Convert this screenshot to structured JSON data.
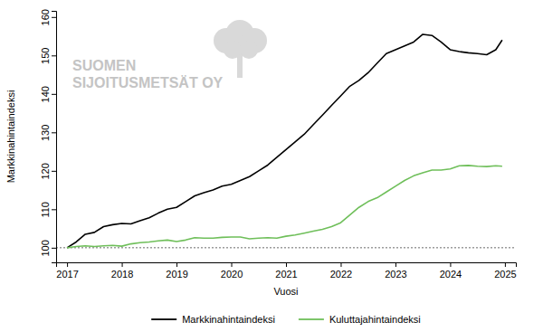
{
  "chart_data": {
    "type": "line",
    "x_label": "Vuosi",
    "y_label": "Markkinahintaindeksi",
    "annotations": [
      "SUOMEN",
      "SIJOITUSMETSÄT OY"
    ],
    "reference_line": 100,
    "xlim": [
      2016.8,
      2025.2
    ],
    "xticks": [
      2017,
      2018,
      2019,
      2020,
      2021,
      2022,
      2023,
      2024,
      2025
    ],
    "ylim": [
      96.2,
      161.6
    ],
    "yticks": [
      100,
      110,
      120,
      130,
      140,
      150,
      160
    ],
    "grid": false,
    "legend": "bottom",
    "x": [
      2017.0,
      2017.167,
      2017.333,
      2017.5,
      2017.667,
      2017.833,
      2018.0,
      2018.167,
      2018.333,
      2018.5,
      2018.667,
      2018.833,
      2019.0,
      2019.167,
      2019.333,
      2019.5,
      2019.667,
      2019.833,
      2020.0,
      2020.167,
      2020.333,
      2020.5,
      2020.667,
      2020.833,
      2021.0,
      2021.167,
      2021.333,
      2021.5,
      2021.667,
      2021.833,
      2022.0,
      2022.167,
      2022.333,
      2022.5,
      2022.667,
      2022.833,
      2023.0,
      2023.167,
      2023.333,
      2023.5,
      2023.667,
      2023.833,
      2024.0,
      2024.167,
      2024.333,
      2024.5,
      2024.667,
      2024.833,
      2024.95
    ],
    "series": [
      {
        "name": "Markkinahintaindeksi",
        "color": "#000000",
        "values": [
          100,
          101.5,
          103.5,
          104,
          105.5,
          106,
          106.3,
          106.2,
          107,
          107.8,
          109,
          110,
          110.5,
          112,
          113.5,
          114.3,
          115,
          116,
          116.5,
          117.5,
          118.5,
          120,
          121.5,
          123.5,
          125.5,
          127.5,
          129.5,
          132,
          134.5,
          137,
          139.5,
          142,
          143.5,
          145.5,
          148,
          150.5,
          151.5,
          152.5,
          153.5,
          155.5,
          155.2,
          153.5,
          151.5,
          151,
          150.7,
          150.5,
          150.2,
          151.5,
          154
        ]
      },
      {
        "name": "Kuluttajahintaindeksi",
        "color": "#6fbf5a",
        "values": [
          100,
          100.3,
          100.5,
          100.3,
          100.5,
          100.6,
          100.4,
          101,
          101.3,
          101.5,
          101.8,
          102,
          101.6,
          102,
          102.6,
          102.5,
          102.5,
          102.7,
          102.8,
          102.8,
          102.3,
          102.5,
          102.6,
          102.5,
          103,
          103.3,
          103.8,
          104.3,
          104.8,
          105.5,
          106.5,
          108.5,
          110.5,
          112,
          113,
          114.5,
          116,
          117.5,
          118.7,
          119.5,
          120.2,
          120.2,
          120.5,
          121.3,
          121.4,
          121.2,
          121.1,
          121.3,
          121.2
        ]
      }
    ]
  }
}
